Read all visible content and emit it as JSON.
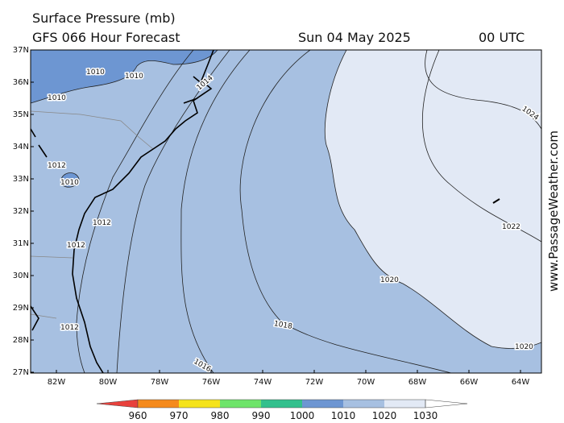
{
  "header": {
    "title": "Surface Pressure (mb)",
    "subtitle": "GFS 066 Hour Forecast",
    "date": "Sun 04 May 2025",
    "time": "00 UTC"
  },
  "map": {
    "lat_labels": [
      "37N",
      "36N",
      "35N",
      "34N",
      "33N",
      "32N",
      "31N",
      "30N",
      "29N",
      "28N",
      "27N"
    ],
    "lon_labels": [
      "82W",
      "80W",
      "78W",
      "76W",
      "74W",
      "72W",
      "70W",
      "68W",
      "66W",
      "64W"
    ],
    "contour_labels": [
      "1010",
      "1010",
      "1010",
      "1012",
      "1010",
      "1012",
      "1012",
      "1012",
      "1014",
      "1016",
      "1018",
      "1020",
      "1020",
      "1022",
      "1024"
    ]
  },
  "colorbar": {
    "labels": [
      "960",
      "970",
      "980",
      "990",
      "1000",
      "1010",
      "1020",
      "1030"
    ]
  },
  "watermark": "www.PassageWeather.com"
}
